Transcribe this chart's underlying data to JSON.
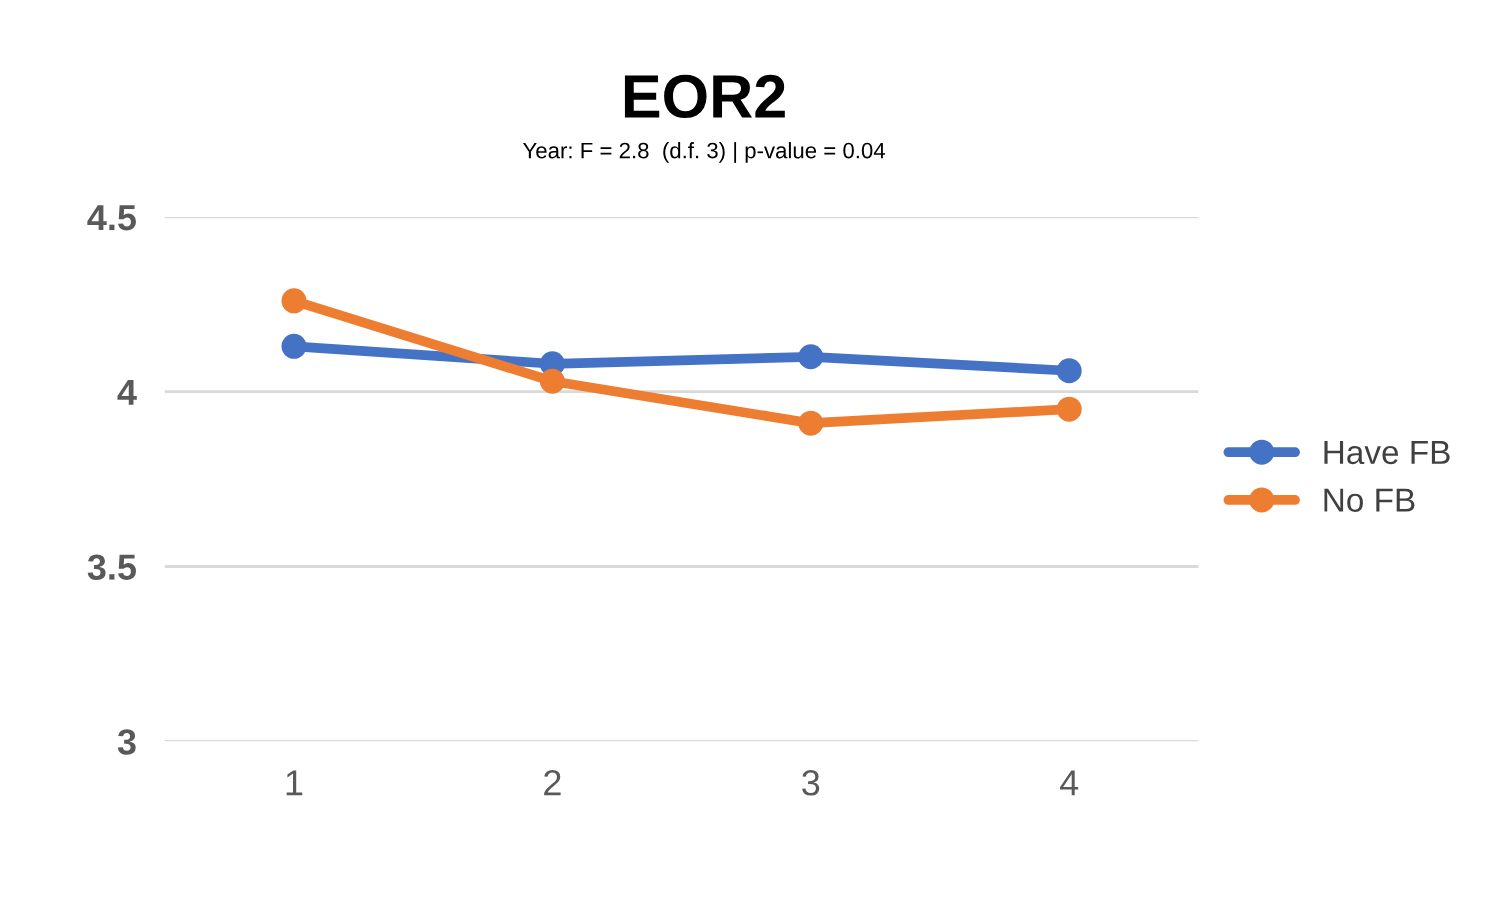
{
  "chart_data": {
    "type": "line",
    "title": "EOR2",
    "subtitle": "Year: F = 2.8  (d.f. 3) | p-value = 0.04",
    "categories": [
      "1",
      "2",
      "3",
      "4"
    ],
    "series": [
      {
        "name": "Have FB",
        "color": "#4472c4",
        "values": [
          4.13,
          4.08,
          4.1,
          4.06
        ]
      },
      {
        "name": "No FB",
        "color": "#ed7d31",
        "values": [
          4.26,
          4.03,
          3.91,
          3.95
        ]
      }
    ],
    "ylim": [
      3,
      4.5
    ],
    "yticks": [
      3,
      3.5,
      4,
      4.5
    ],
    "grid": "y",
    "legend": "right",
    "marker": "circle",
    "line_style": "solid"
  }
}
